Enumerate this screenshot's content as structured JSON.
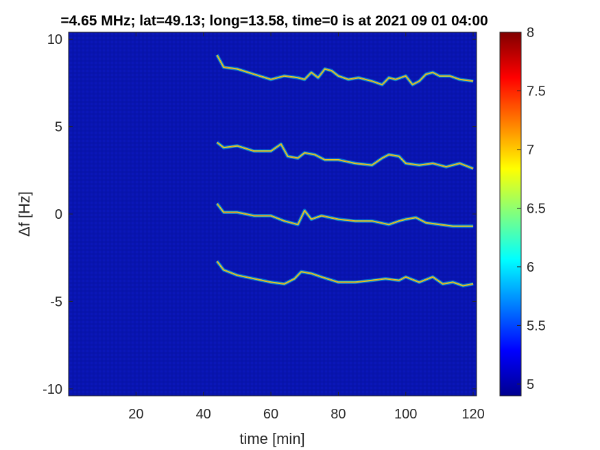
{
  "chart_data": {
    "type": "heatmap",
    "title": "=4.65 MHz;  lat=49.13; long=13.58, time=0 is at 2021 09 01 04:00",
    "xlabel": "time [min]",
    "ylabel": "Δf [Hz]",
    "xlim": [
      0,
      121
    ],
    "ylim": [
      -10.4,
      10.4
    ],
    "x_ticks": [
      20,
      40,
      60,
      80,
      100,
      120
    ],
    "x_tick_labels": [
      "20",
      "40",
      "60",
      "80",
      "100",
      "120"
    ],
    "y_ticks": [
      -10,
      -5,
      0,
      5,
      10
    ],
    "y_tick_labels": [
      "-10",
      "-5",
      "0",
      "5",
      "10"
    ],
    "colorbar": {
      "range": [
        4.9,
        8
      ],
      "ticks": [
        5,
        5.5,
        6,
        6.5,
        7,
        7.5,
        8
      ],
      "tick_labels": [
        "5",
        "5.5",
        "6",
        "6.5",
        "7",
        "7.5",
        "8"
      ],
      "colormap": "jet"
    },
    "background_value": 4.95,
    "series": [
      {
        "points": [
          [
            44,
            9.1
          ],
          [
            46,
            8.4
          ],
          [
            50,
            8.3
          ],
          [
            55,
            8.0
          ],
          [
            60,
            7.7
          ],
          [
            64,
            7.9
          ],
          [
            68,
            7.8
          ],
          [
            70,
            7.7
          ],
          [
            72,
            8.1
          ],
          [
            74,
            7.8
          ],
          [
            76,
            8.3
          ],
          [
            78,
            8.2
          ],
          [
            80,
            7.9
          ],
          [
            83,
            7.7
          ],
          [
            86,
            7.8
          ],
          [
            90,
            7.6
          ],
          [
            93,
            7.4
          ],
          [
            95,
            7.8
          ],
          [
            97,
            7.7
          ],
          [
            100,
            7.9
          ],
          [
            102,
            7.4
          ],
          [
            104,
            7.6
          ],
          [
            106,
            8.0
          ],
          [
            108,
            8.1
          ],
          [
            110,
            7.9
          ],
          [
            113,
            7.9
          ],
          [
            116,
            7.7
          ],
          [
            120,
            7.6
          ]
        ]
      },
      {
        "points": [
          [
            44,
            4.1
          ],
          [
            46,
            3.8
          ],
          [
            50,
            3.9
          ],
          [
            55,
            3.6
          ],
          [
            60,
            3.6
          ],
          [
            63,
            4.0
          ],
          [
            65,
            3.3
          ],
          [
            68,
            3.2
          ],
          [
            70,
            3.5
          ],
          [
            73,
            3.4
          ],
          [
            76,
            3.1
          ],
          [
            80,
            3.1
          ],
          [
            85,
            2.9
          ],
          [
            90,
            2.8
          ],
          [
            93,
            3.2
          ],
          [
            95,
            3.4
          ],
          [
            98,
            3.3
          ],
          [
            100,
            2.9
          ],
          [
            104,
            2.8
          ],
          [
            108,
            2.9
          ],
          [
            112,
            2.7
          ],
          [
            116,
            2.9
          ],
          [
            120,
            2.6
          ]
        ]
      },
      {
        "points": [
          [
            44,
            0.6
          ],
          [
            46,
            0.1
          ],
          [
            50,
            0.1
          ],
          [
            55,
            -0.1
          ],
          [
            60,
            -0.1
          ],
          [
            64,
            -0.4
          ],
          [
            68,
            -0.6
          ],
          [
            70,
            0.2
          ],
          [
            72,
            -0.3
          ],
          [
            75,
            -0.1
          ],
          [
            80,
            -0.3
          ],
          [
            85,
            -0.4
          ],
          [
            90,
            -0.4
          ],
          [
            95,
            -0.6
          ],
          [
            98,
            -0.4
          ],
          [
            100,
            -0.3
          ],
          [
            103,
            -0.2
          ],
          [
            106,
            -0.5
          ],
          [
            110,
            -0.6
          ],
          [
            114,
            -0.7
          ],
          [
            120,
            -0.7
          ]
        ]
      },
      {
        "points": [
          [
            44,
            -2.7
          ],
          [
            46,
            -3.2
          ],
          [
            50,
            -3.5
          ],
          [
            55,
            -3.7
          ],
          [
            60,
            -3.9
          ],
          [
            64,
            -4.0
          ],
          [
            67,
            -3.7
          ],
          [
            69,
            -3.3
          ],
          [
            72,
            -3.4
          ],
          [
            75,
            -3.6
          ],
          [
            80,
            -3.9
          ],
          [
            85,
            -3.9
          ],
          [
            90,
            -3.8
          ],
          [
            94,
            -3.7
          ],
          [
            98,
            -3.8
          ],
          [
            100,
            -3.6
          ],
          [
            104,
            -3.9
          ],
          [
            108,
            -3.6
          ],
          [
            111,
            -4.0
          ],
          [
            114,
            -3.9
          ],
          [
            117,
            -4.1
          ],
          [
            120,
            -4.0
          ]
        ]
      }
    ]
  }
}
